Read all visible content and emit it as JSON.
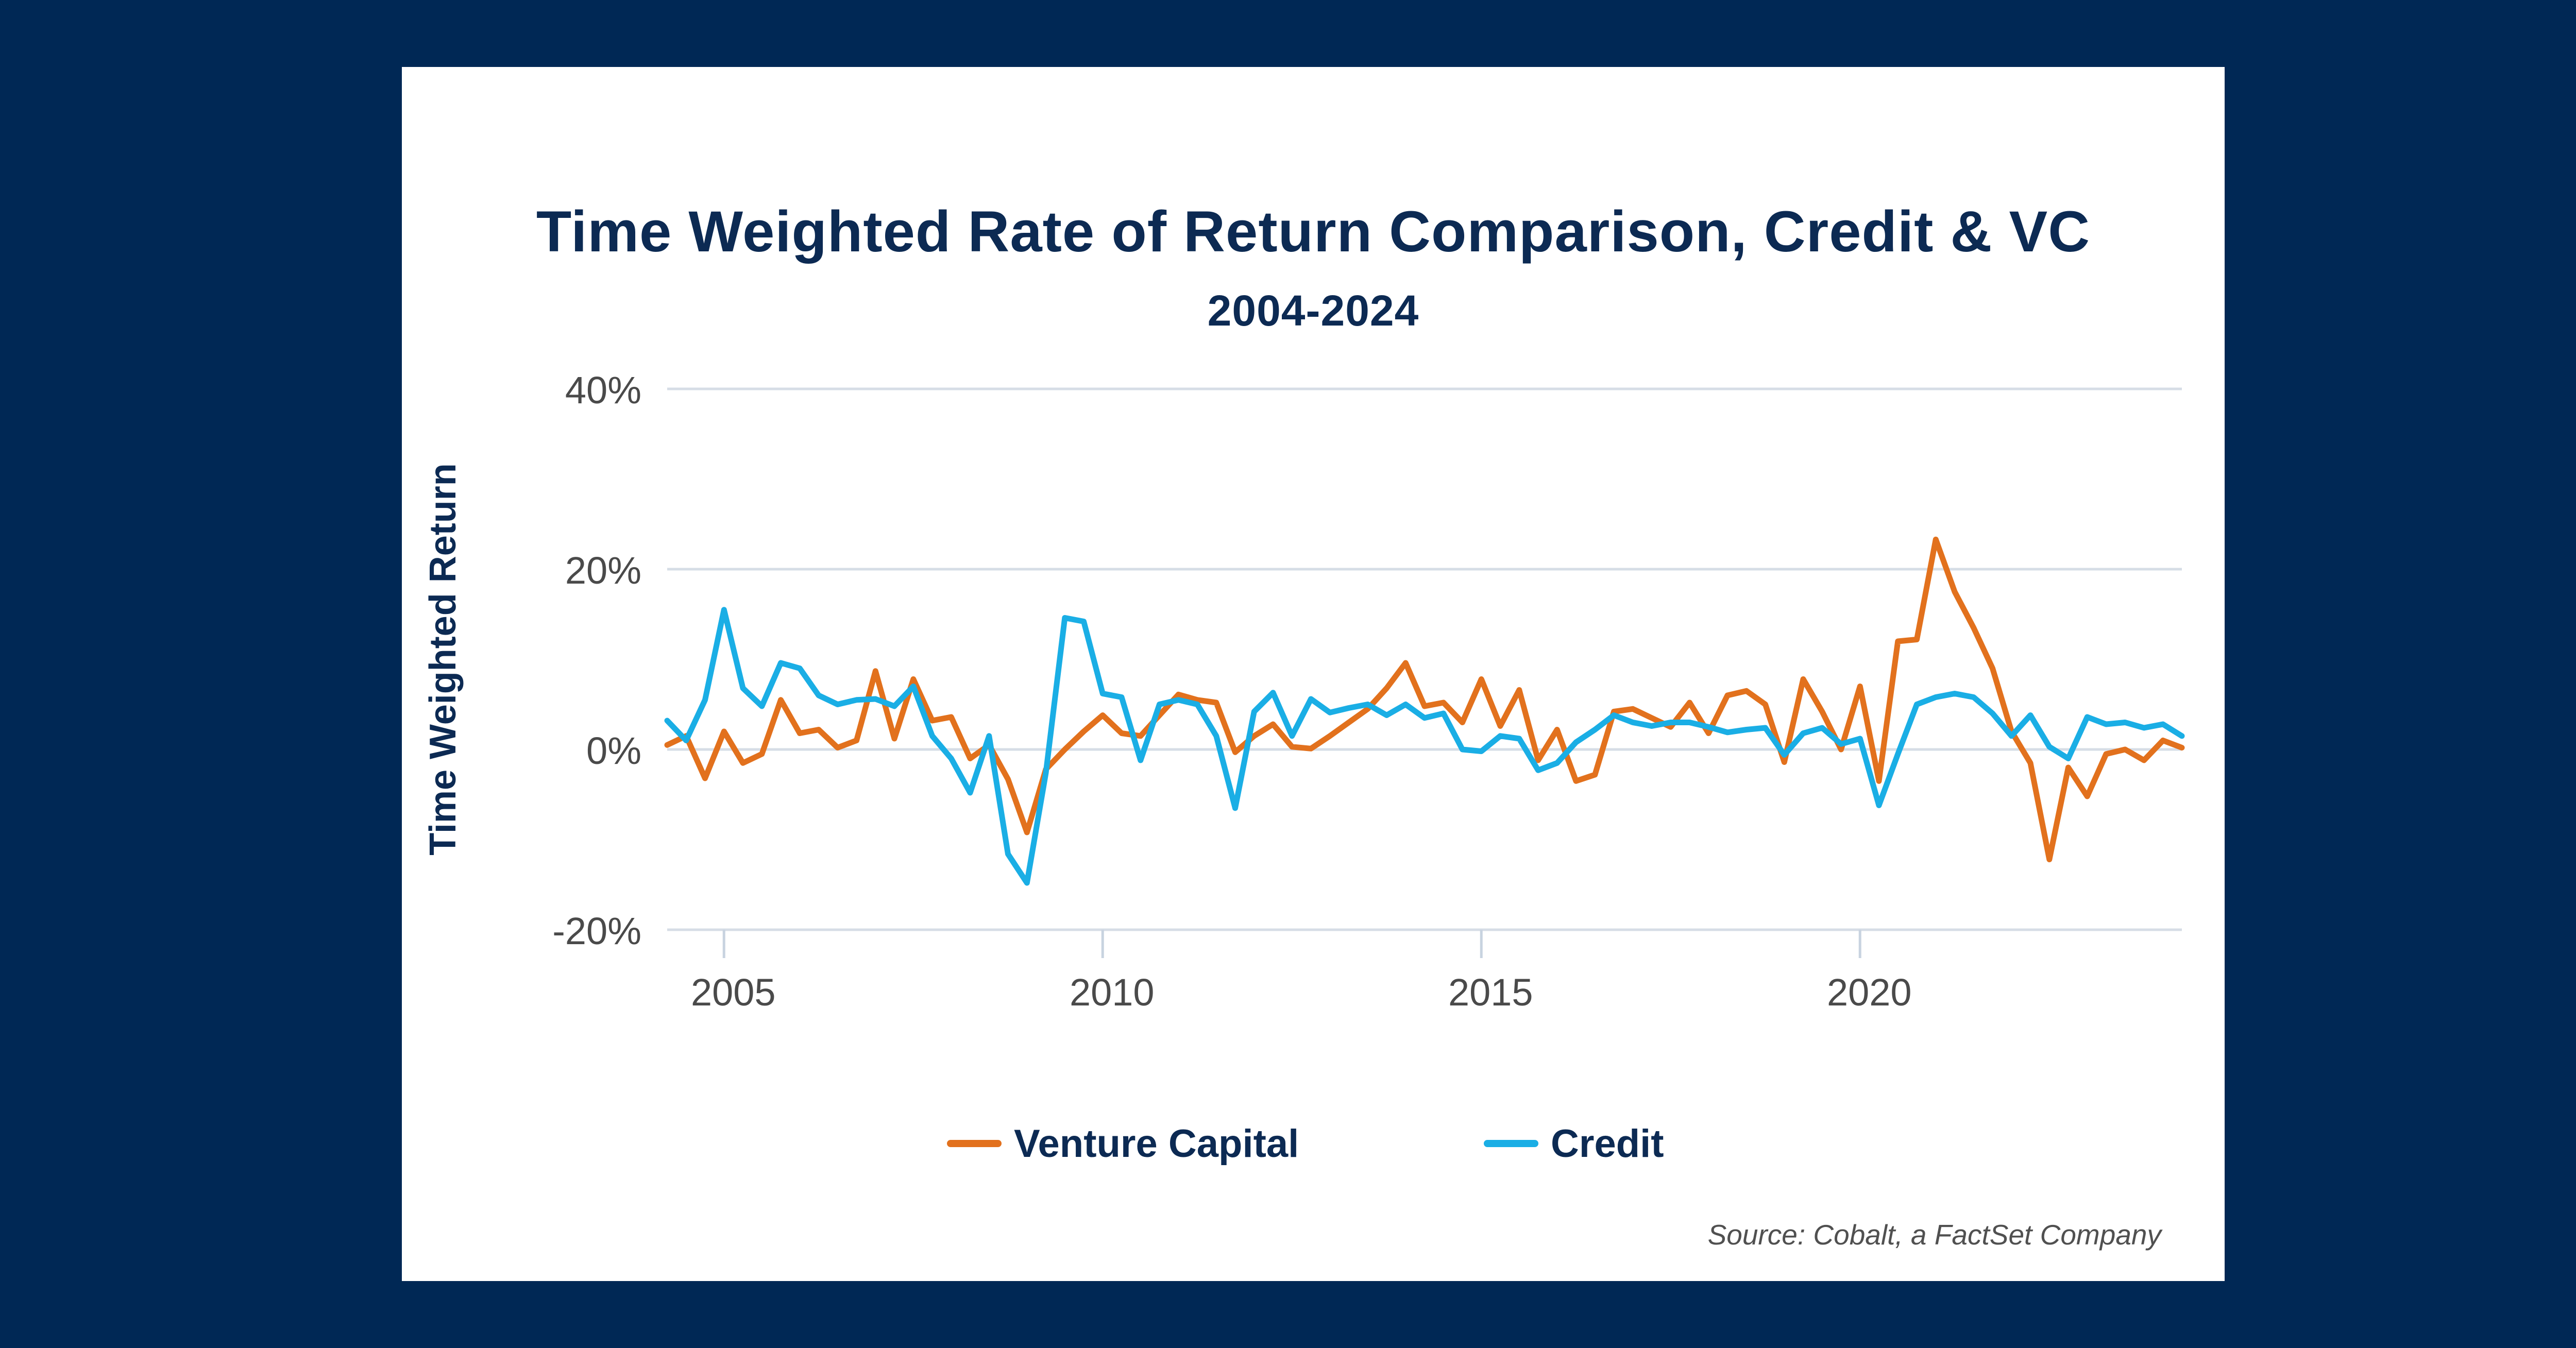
{
  "chart_data": {
    "type": "line",
    "title": "Time Weighted Rate of Return Comparison, Credit & VC",
    "subtitle": "2004-2024",
    "ylabel": "Time Weighted Return",
    "xlabel": "",
    "ylim": [
      -20,
      40
    ],
    "xlim": [
      2004.25,
      2024.25
    ],
    "yticks": [
      {
        "value": -20,
        "label": "-20%"
      },
      {
        "value": 0,
        "label": "0%"
      },
      {
        "value": 20,
        "label": "20%"
      },
      {
        "value": 40,
        "label": "40%"
      }
    ],
    "xticks": [
      {
        "value": 2005,
        "label": "2005"
      },
      {
        "value": 2010,
        "label": "2010"
      },
      {
        "value": 2015,
        "label": "2015"
      },
      {
        "value": 2020,
        "label": "2020"
      }
    ],
    "grid": true,
    "legend_position": "bottom",
    "x": [
      2004.25,
      2004.5,
      2004.75,
      2005.0,
      2005.25,
      2005.5,
      2005.75,
      2006.0,
      2006.25,
      2006.5,
      2006.75,
      2007.0,
      2007.25,
      2007.5,
      2007.75,
      2008.0,
      2008.25,
      2008.5,
      2008.75,
      2009.0,
      2009.25,
      2009.5,
      2009.75,
      2010.0,
      2010.25,
      2010.5,
      2010.75,
      2011.0,
      2011.25,
      2011.5,
      2011.75,
      2012.0,
      2012.25,
      2012.5,
      2012.75,
      2013.0,
      2013.25,
      2013.5,
      2013.75,
      2014.0,
      2014.25,
      2014.5,
      2014.75,
      2015.0,
      2015.25,
      2015.5,
      2015.75,
      2016.0,
      2016.25,
      2016.5,
      2016.75,
      2017.0,
      2017.25,
      2017.5,
      2017.75,
      2018.0,
      2018.25,
      2018.5,
      2018.75,
      2019.0,
      2019.25,
      2019.5,
      2019.75,
      2020.0,
      2020.25,
      2020.5,
      2020.75,
      2021.0,
      2021.25,
      2021.5,
      2021.75,
      2022.0,
      2022.25,
      2022.5,
      2022.75,
      2023.0,
      2023.25,
      2023.5,
      2023.75,
      2024.0,
      2024.25
    ],
    "series": [
      {
        "name": "Venture Capital",
        "color": "#e2711d",
        "values": [
          0.5,
          1.5,
          -3.2,
          2.0,
          -1.5,
          -0.5,
          5.5,
          1.8,
          2.2,
          0.2,
          1.0,
          8.7,
          1.2,
          7.8,
          3.2,
          3.6,
          -1.0,
          0.5,
          -3.3,
          -9.2,
          -2.2,
          0.0,
          2.0,
          3.8,
          1.8,
          1.5,
          3.8,
          6.1,
          5.5,
          5.2,
          -0.3,
          1.5,
          2.8,
          0.3,
          0.1,
          1.5,
          3.0,
          4.5,
          6.8,
          9.6,
          4.8,
          5.2,
          3.0,
          7.8,
          2.6,
          6.6,
          -1.2,
          2.2,
          -3.5,
          -2.8,
          4.2,
          4.5,
          3.5,
          2.5,
          5.2,
          1.8,
          6.0,
          6.5,
          5.0,
          -1.4,
          7.8,
          4.2,
          0.0,
          7.0,
          -3.5,
          12.0,
          12.2,
          23.3,
          17.5,
          13.5,
          9.0,
          2.0,
          -1.5,
          -12.2,
          -2.0,
          -5.2,
          -0.5,
          0.0,
          -1.2,
          1.0,
          0.2
        ]
      },
      {
        "name": "Credit",
        "color": "#1aaee5",
        "values": [
          3.2,
          1.0,
          5.5,
          15.5,
          6.8,
          4.8,
          9.6,
          9.0,
          6.0,
          5.0,
          5.5,
          5.6,
          4.8,
          7.0,
          1.5,
          -1.0,
          -4.8,
          1.5,
          -11.6,
          -14.8,
          -2.6,
          14.6,
          14.2,
          6.2,
          5.8,
          -1.2,
          5.0,
          5.5,
          5.0,
          1.5,
          -6.5,
          4.2,
          6.3,
          1.5,
          5.6,
          4.1,
          4.6,
          5.0,
          3.8,
          5.0,
          3.5,
          4.0,
          0.0,
          -0.2,
          1.5,
          1.2,
          -2.3,
          -1.5,
          0.8,
          2.2,
          3.8,
          3.0,
          2.6,
          3.0,
          3.0,
          2.5,
          1.9,
          2.2,
          2.4,
          -0.6,
          1.8,
          2.4,
          0.6,
          1.2,
          -6.2,
          -0.5,
          5.0,
          5.8,
          6.2,
          5.8,
          4.0,
          1.5,
          3.8,
          0.3,
          -1.0,
          3.6,
          2.8,
          3.0,
          2.4,
          2.8,
          1.5
        ]
      }
    ]
  },
  "legend": {
    "items": [
      {
        "label": "Venture Capital",
        "color": "#e2711d"
      },
      {
        "label": "Credit",
        "color": "#1aaee5"
      }
    ]
  },
  "source": "Source: Cobalt, a FactSet Company"
}
